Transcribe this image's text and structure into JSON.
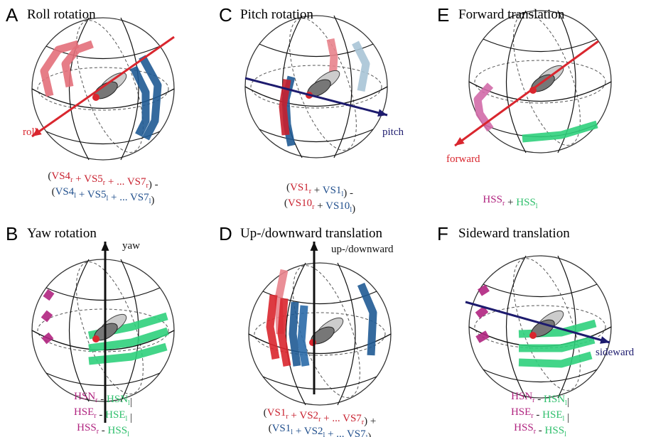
{
  "panels": [
    {
      "letter": "A",
      "title": "Roll rotation",
      "axis_label": "roll",
      "axis_color": "#d9262e",
      "formula": [
        [
          {
            "text": "(",
            "color": "#222"
          },
          {
            "text": "VS4",
            "sub": "r",
            "color": "#c8202e"
          },
          {
            "text": " + ",
            "color": "#c8202e"
          },
          {
            "text": "VS5",
            "sub": "r",
            "color": "#c8202e"
          },
          {
            "text": " + ... ",
            "color": "#c8202e"
          },
          {
            "text": "VS7",
            "sub": "r",
            "color": "#c8202e"
          },
          {
            "text": ") -",
            "color": "#222"
          }
        ],
        [
          {
            "text": "(",
            "color": "#222"
          },
          {
            "text": "VS4",
            "sub": "l",
            "color": "#1f4e8c"
          },
          {
            "text": " + ",
            "color": "#1f4e8c"
          },
          {
            "text": "VS5",
            "sub": "l",
            "color": "#1f4e8c"
          },
          {
            "text": " + ... ",
            "color": "#1f4e8c"
          },
          {
            "text": "VS7",
            "sub": "l",
            "color": "#1f4e8c"
          },
          {
            "text": ")",
            "color": "#222"
          }
        ]
      ]
    },
    {
      "letter": "C",
      "title": "Pitch rotation",
      "axis_label": "pitch",
      "axis_color": "#1d1b6e",
      "formula": [
        [
          {
            "text": "(",
            "color": "#222"
          },
          {
            "text": "VS1",
            "sub": "r",
            "color": "#c8202e"
          },
          {
            "text": " + ",
            "color": "#222"
          },
          {
            "text": "VS1",
            "sub": "l",
            "color": "#1f4e8c"
          },
          {
            "text": ") -",
            "color": "#222"
          }
        ],
        [
          {
            "text": "(",
            "color": "#222"
          },
          {
            "text": "VS10",
            "sub": "r",
            "color": "#c8202e"
          },
          {
            "text": " + ",
            "color": "#222"
          },
          {
            "text": "VS10",
            "sub": "l",
            "color": "#1f4e8c"
          },
          {
            "text": ")",
            "color": "#222"
          }
        ]
      ]
    },
    {
      "letter": "E",
      "title": "Forward translation",
      "axis_label": "forward",
      "axis_color": "#d9262e",
      "formula": [
        [
          {
            "text": "HSS",
            "sub": "r",
            "color": "#b0237f"
          },
          {
            "text": " + ",
            "color": "#222"
          },
          {
            "text": "HSS",
            "sub": "l",
            "color": "#2fbf6c"
          }
        ]
      ]
    },
    {
      "letter": "B",
      "title": "Yaw rotation",
      "axis_label": "yaw",
      "axis_color": "#111",
      "formula": [
        [
          {
            "text": "HSN",
            "sub": "r",
            "color": "#b0237f"
          },
          {
            "text": " - ",
            "color": "#222"
          },
          {
            "text": "HSN",
            "sub": "l",
            "color": "#2fbf6c"
          },
          {
            "text": "|",
            "color": "#222"
          }
        ],
        [
          {
            "text": "HSE",
            "sub": "r",
            "color": "#b0237f"
          },
          {
            "text": " - ",
            "color": "#222"
          },
          {
            "text": "HSE",
            "sub": "l",
            "color": "#2fbf6c"
          },
          {
            "text": " |",
            "color": "#222"
          }
        ],
        [
          {
            "text": "HSS",
            "sub": "r",
            "color": "#b0237f"
          },
          {
            "text": " - ",
            "color": "#222"
          },
          {
            "text": "HSS",
            "sub": "l",
            "color": "#2fbf6c"
          }
        ]
      ]
    },
    {
      "letter": "D",
      "title": "Up-/downward translation",
      "axis_label": "up-/downward",
      "axis_color": "#111",
      "formula": [
        [
          {
            "text": "(",
            "color": "#222"
          },
          {
            "text": "VS1",
            "sub": "r",
            "color": "#c8202e"
          },
          {
            "text": " + ",
            "color": "#c8202e"
          },
          {
            "text": "VS2",
            "sub": "r",
            "color": "#c8202e"
          },
          {
            "text": " + ... ",
            "color": "#c8202e"
          },
          {
            "text": "VS7",
            "sub": "r",
            "color": "#c8202e"
          },
          {
            "text": ") +",
            "color": "#222"
          }
        ],
        [
          {
            "text": "(",
            "color": "#222"
          },
          {
            "text": "VS1",
            "sub": "l",
            "color": "#1f4e8c"
          },
          {
            "text": " + ",
            "color": "#1f4e8c"
          },
          {
            "text": "VS2",
            "sub": "l",
            "color": "#1f4e8c"
          },
          {
            "text": " + ... ",
            "color": "#1f4e8c"
          },
          {
            "text": "VS7",
            "sub": "l",
            "color": "#1f4e8c"
          },
          {
            "text": ")",
            "color": "#222"
          }
        ]
      ]
    },
    {
      "letter": "F",
      "title": "Sideward translation",
      "axis_label": "sideward",
      "axis_color": "#1d1b6e",
      "formula": [
        [
          {
            "text": "HSN",
            "sub": "r",
            "color": "#b0237f"
          },
          {
            "text": " - ",
            "color": "#222"
          },
          {
            "text": "HSN",
            "sub": "l",
            "color": "#2fbf6c"
          },
          {
            "text": "|",
            "color": "#222"
          }
        ],
        [
          {
            "text": "HSE",
            "sub": "r",
            "color": "#b0237f"
          },
          {
            "text": " - ",
            "color": "#222"
          },
          {
            "text": "HSE",
            "sub": "l",
            "color": "#2fbf6c"
          },
          {
            "text": " |",
            "color": "#222"
          }
        ],
        [
          {
            "text": "HSS",
            "sub": "r",
            "color": "#b0237f"
          },
          {
            "text": " - ",
            "color": "#222"
          },
          {
            "text": "HSS",
            "sub": "l",
            "color": "#2fbf6c"
          }
        ]
      ]
    }
  ]
}
